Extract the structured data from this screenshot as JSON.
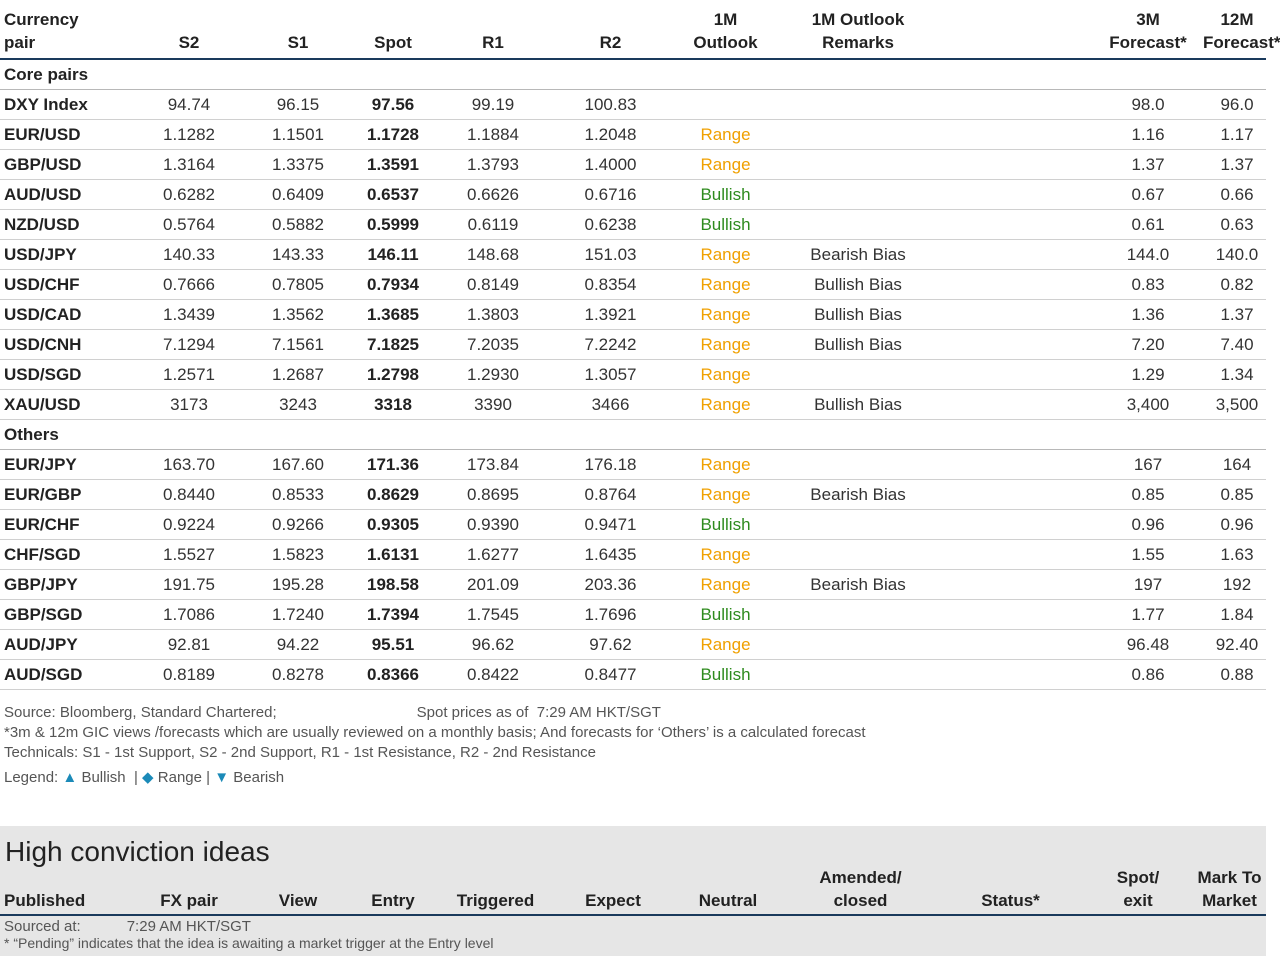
{
  "table": {
    "headers": [
      "Currency\npair",
      "S2",
      "S1",
      "Spot",
      "R1",
      "R2",
      "1M\nOutlook",
      "1M Outlook\nRemarks",
      "",
      "3M\nForecast*",
      "12M\nForecast*"
    ],
    "sections": [
      {
        "title": "Core pairs",
        "rows": [
          {
            "pair": "DXY Index",
            "s2": "94.74",
            "s1": "96.15",
            "spot": "97.56",
            "r1": "99.19",
            "r2": "100.83",
            "outlook": "",
            "remarks": "",
            "f3m": "98.0",
            "f12m": "96.0"
          },
          {
            "pair": "EUR/USD",
            "s2": "1.1282",
            "s1": "1.1501",
            "spot": "1.1728",
            "r1": "1.1884",
            "r2": "1.2048",
            "outlook": "Range",
            "remarks": "",
            "f3m": "1.16",
            "f12m": "1.17"
          },
          {
            "pair": "GBP/USD",
            "s2": "1.3164",
            "s1": "1.3375",
            "spot": "1.3591",
            "r1": "1.3793",
            "r2": "1.4000",
            "outlook": "Range",
            "remarks": "",
            "f3m": "1.37",
            "f12m": "1.37"
          },
          {
            "pair": "AUD/USD",
            "s2": "0.6282",
            "s1": "0.6409",
            "spot": "0.6537",
            "r1": "0.6626",
            "r2": "0.6716",
            "outlook": "Bullish",
            "remarks": "",
            "f3m": "0.67",
            "f12m": "0.66"
          },
          {
            "pair": "NZD/USD",
            "s2": "0.5764",
            "s1": "0.5882",
            "spot": "0.5999",
            "r1": "0.6119",
            "r2": "0.6238",
            "outlook": "Bullish",
            "remarks": "",
            "f3m": "0.61",
            "f12m": "0.63"
          },
          {
            "pair": "USD/JPY",
            "s2": "140.33",
            "s1": "143.33",
            "spot": "146.11",
            "r1": "148.68",
            "r2": "151.03",
            "outlook": "Range",
            "remarks": "Bearish Bias",
            "f3m": "144.0",
            "f12m": "140.0"
          },
          {
            "pair": "USD/CHF",
            "s2": "0.7666",
            "s1": "0.7805",
            "spot": "0.7934",
            "r1": "0.8149",
            "r2": "0.8354",
            "outlook": "Range",
            "remarks": "Bullish Bias",
            "f3m": "0.83",
            "f12m": "0.82"
          },
          {
            "pair": "USD/CAD",
            "s2": "1.3439",
            "s1": "1.3562",
            "spot": "1.3685",
            "r1": "1.3803",
            "r2": "1.3921",
            "outlook": "Range",
            "remarks": "Bullish Bias",
            "f3m": "1.36",
            "f12m": "1.37"
          },
          {
            "pair": "USD/CNH",
            "s2": "7.1294",
            "s1": "7.1561",
            "spot": "7.1825",
            "r1": "7.2035",
            "r2": "7.2242",
            "outlook": "Range",
            "remarks": "Bullish Bias",
            "f3m": "7.20",
            "f12m": "7.40"
          },
          {
            "pair": "USD/SGD",
            "s2": "1.2571",
            "s1": "1.2687",
            "spot": "1.2798",
            "r1": "1.2930",
            "r2": "1.3057",
            "outlook": "Range",
            "remarks": "",
            "f3m": "1.29",
            "f12m": "1.34"
          },
          {
            "pair": "XAU/USD",
            "s2": "3173",
            "s1": "3243",
            "spot": "3318",
            "r1": "3390",
            "r2": "3466",
            "outlook": "Range",
            "remarks": "Bullish Bias",
            "f3m": "3,400",
            "f12m": "3,500"
          }
        ]
      },
      {
        "title": "Others",
        "rows": [
          {
            "pair": "EUR/JPY",
            "s2": "163.70",
            "s1": "167.60",
            "spot": "171.36",
            "r1": "173.84",
            "r2": "176.18",
            "outlook": "Range",
            "remarks": "",
            "f3m": "167",
            "f12m": "164"
          },
          {
            "pair": "EUR/GBP",
            "s2": "0.8440",
            "s1": "0.8533",
            "spot": "0.8629",
            "r1": "0.8695",
            "r2": "0.8764",
            "outlook": "Range",
            "remarks": "Bearish Bias",
            "f3m": "0.85",
            "f12m": "0.85"
          },
          {
            "pair": "EUR/CHF",
            "s2": "0.9224",
            "s1": "0.9266",
            "spot": "0.9305",
            "r1": "0.9390",
            "r2": "0.9471",
            "outlook": "Bullish",
            "remarks": "",
            "f3m": "0.96",
            "f12m": "0.96"
          },
          {
            "pair": "CHF/SGD",
            "s2": "1.5527",
            "s1": "1.5823",
            "spot": "1.6131",
            "r1": "1.6277",
            "r2": "1.6435",
            "outlook": "Range",
            "remarks": "",
            "f3m": "1.55",
            "f12m": "1.63"
          },
          {
            "pair": "GBP/JPY",
            "s2": "191.75",
            "s1": "195.28",
            "spot": "198.58",
            "r1": "201.09",
            "r2": "203.36",
            "outlook": "Range",
            "remarks": "Bearish Bias",
            "f3m": "197",
            "f12m": "192"
          },
          {
            "pair": "GBP/SGD",
            "s2": "1.7086",
            "s1": "1.7240",
            "spot": "1.7394",
            "r1": "1.7545",
            "r2": "1.7696",
            "outlook": "Bullish",
            "remarks": "",
            "f3m": "1.77",
            "f12m": "1.84"
          },
          {
            "pair": "AUD/JPY",
            "s2": "92.81",
            "s1": "94.22",
            "spot": "95.51",
            "r1": "96.62",
            "r2": "97.62",
            "outlook": "Range",
            "remarks": "",
            "f3m": "96.48",
            "f12m": "92.40"
          },
          {
            "pair": "AUD/SGD",
            "s2": "0.8189",
            "s1": "0.8278",
            "spot": "0.8366",
            "r1": "0.8422",
            "r2": "0.8477",
            "outlook": "Bullish",
            "remarks": "",
            "f3m": "0.86",
            "f12m": "0.88"
          }
        ]
      }
    ]
  },
  "notes": {
    "source": "Source: Bloomberg, Standard Chartered;",
    "spot_label": "Spot prices as of",
    "spot_time": "7:29 AM HKT/SGT",
    "line2": "*3m & 12m GIC views /forecasts which are usually reviewed on a monthly basis; And forecasts for ‘Others’ is a calculated forecast",
    "line3": "Technicals: S1 - 1st Support, S2 - 2nd Support, R1 - 1st Resistance, R2 - 2nd Resistance",
    "legend_label": "Legend:",
    "legend_bullish": "Bullish",
    "legend_range": "Range",
    "legend_bearish": "Bearish",
    "legend_sep": "|"
  },
  "high_conviction": {
    "title": "High conviction ideas",
    "headers": [
      "Published",
      "FX pair",
      "View",
      "Entry",
      "Triggered",
      "Expect",
      "Neutral",
      "Amended/\nclosed",
      "Status*",
      "Spot/\nexit",
      "Mark To\nMarket"
    ],
    "sourced_label": "Sourced at:",
    "sourced_time": "7:29 AM HKT/SGT",
    "footnote": "* “Pending” indicates that the idea is awaiting a market trigger at the Entry level"
  },
  "colors": {
    "range": "#f0a000",
    "bullish": "#2e8b1e",
    "legend_icon": "#1b8ab8",
    "rule": "#1a3a5c"
  }
}
